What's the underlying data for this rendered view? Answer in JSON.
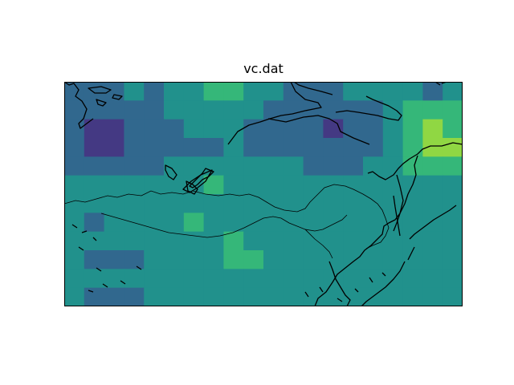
{
  "figure": {
    "title": "vc.dat"
  },
  "map": {
    "colormap": "viridis",
    "frame_color": "#000000",
    "coastline_color": "#000000"
  },
  "chart_data": {
    "type": "heatmap",
    "title": "vc.dat",
    "xlabel": "",
    "ylabel": "",
    "levels": 7,
    "grid": false,
    "values": [
      [
        2,
        2,
        2,
        3,
        2,
        3,
        3,
        4,
        4,
        3,
        3,
        2,
        2,
        2,
        3,
        3,
        3,
        3,
        2,
        3
      ],
      [
        2,
        2,
        2,
        2,
        2,
        3,
        3,
        3,
        3,
        3,
        2,
        2,
        2,
        2,
        2,
        2,
        3,
        4,
        4,
        4
      ],
      [
        2,
        1,
        1,
        2,
        2,
        2,
        3,
        3,
        3,
        2,
        2,
        2,
        2,
        1,
        2,
        2,
        3,
        4,
        5,
        4
      ],
      [
        2,
        1,
        1,
        2,
        2,
        2,
        2,
        2,
        3,
        2,
        2,
        2,
        2,
        2,
        2,
        2,
        3,
        4,
        5,
        5
      ],
      [
        2,
        2,
        2,
        2,
        2,
        3,
        3,
        3,
        3,
        3,
        3,
        3,
        2,
        2,
        2,
        3,
        3,
        4,
        4,
        4
      ],
      [
        3,
        3,
        3,
        3,
        3,
        3,
        3,
        4,
        3,
        3,
        3,
        3,
        3,
        3,
        3,
        3,
        3,
        3,
        3,
        3
      ],
      [
        3,
        3,
        3,
        3,
        3,
        3,
        3,
        3,
        3,
        3,
        3,
        3,
        3,
        3,
        3,
        3,
        3,
        3,
        3,
        3
      ],
      [
        3,
        2,
        3,
        3,
        3,
        3,
        4,
        3,
        3,
        3,
        3,
        3,
        3,
        3,
        3,
        3,
        3,
        3,
        3,
        3
      ],
      [
        3,
        3,
        3,
        3,
        3,
        3,
        3,
        3,
        4,
        3,
        3,
        3,
        3,
        3,
        3,
        3,
        3,
        3,
        3,
        3
      ],
      [
        3,
        2,
        2,
        2,
        3,
        3,
        3,
        3,
        4,
        4,
        3,
        3,
        3,
        3,
        3,
        3,
        3,
        3,
        3,
        3
      ],
      [
        3,
        3,
        3,
        3,
        3,
        3,
        3,
        3,
        3,
        3,
        3,
        3,
        3,
        3,
        3,
        3,
        3,
        3,
        3,
        3
      ],
      [
        3,
        2,
        2,
        2,
        3,
        3,
        3,
        3,
        3,
        3,
        3,
        3,
        3,
        3,
        3,
        3,
        3,
        3,
        3,
        3
      ]
    ]
  }
}
